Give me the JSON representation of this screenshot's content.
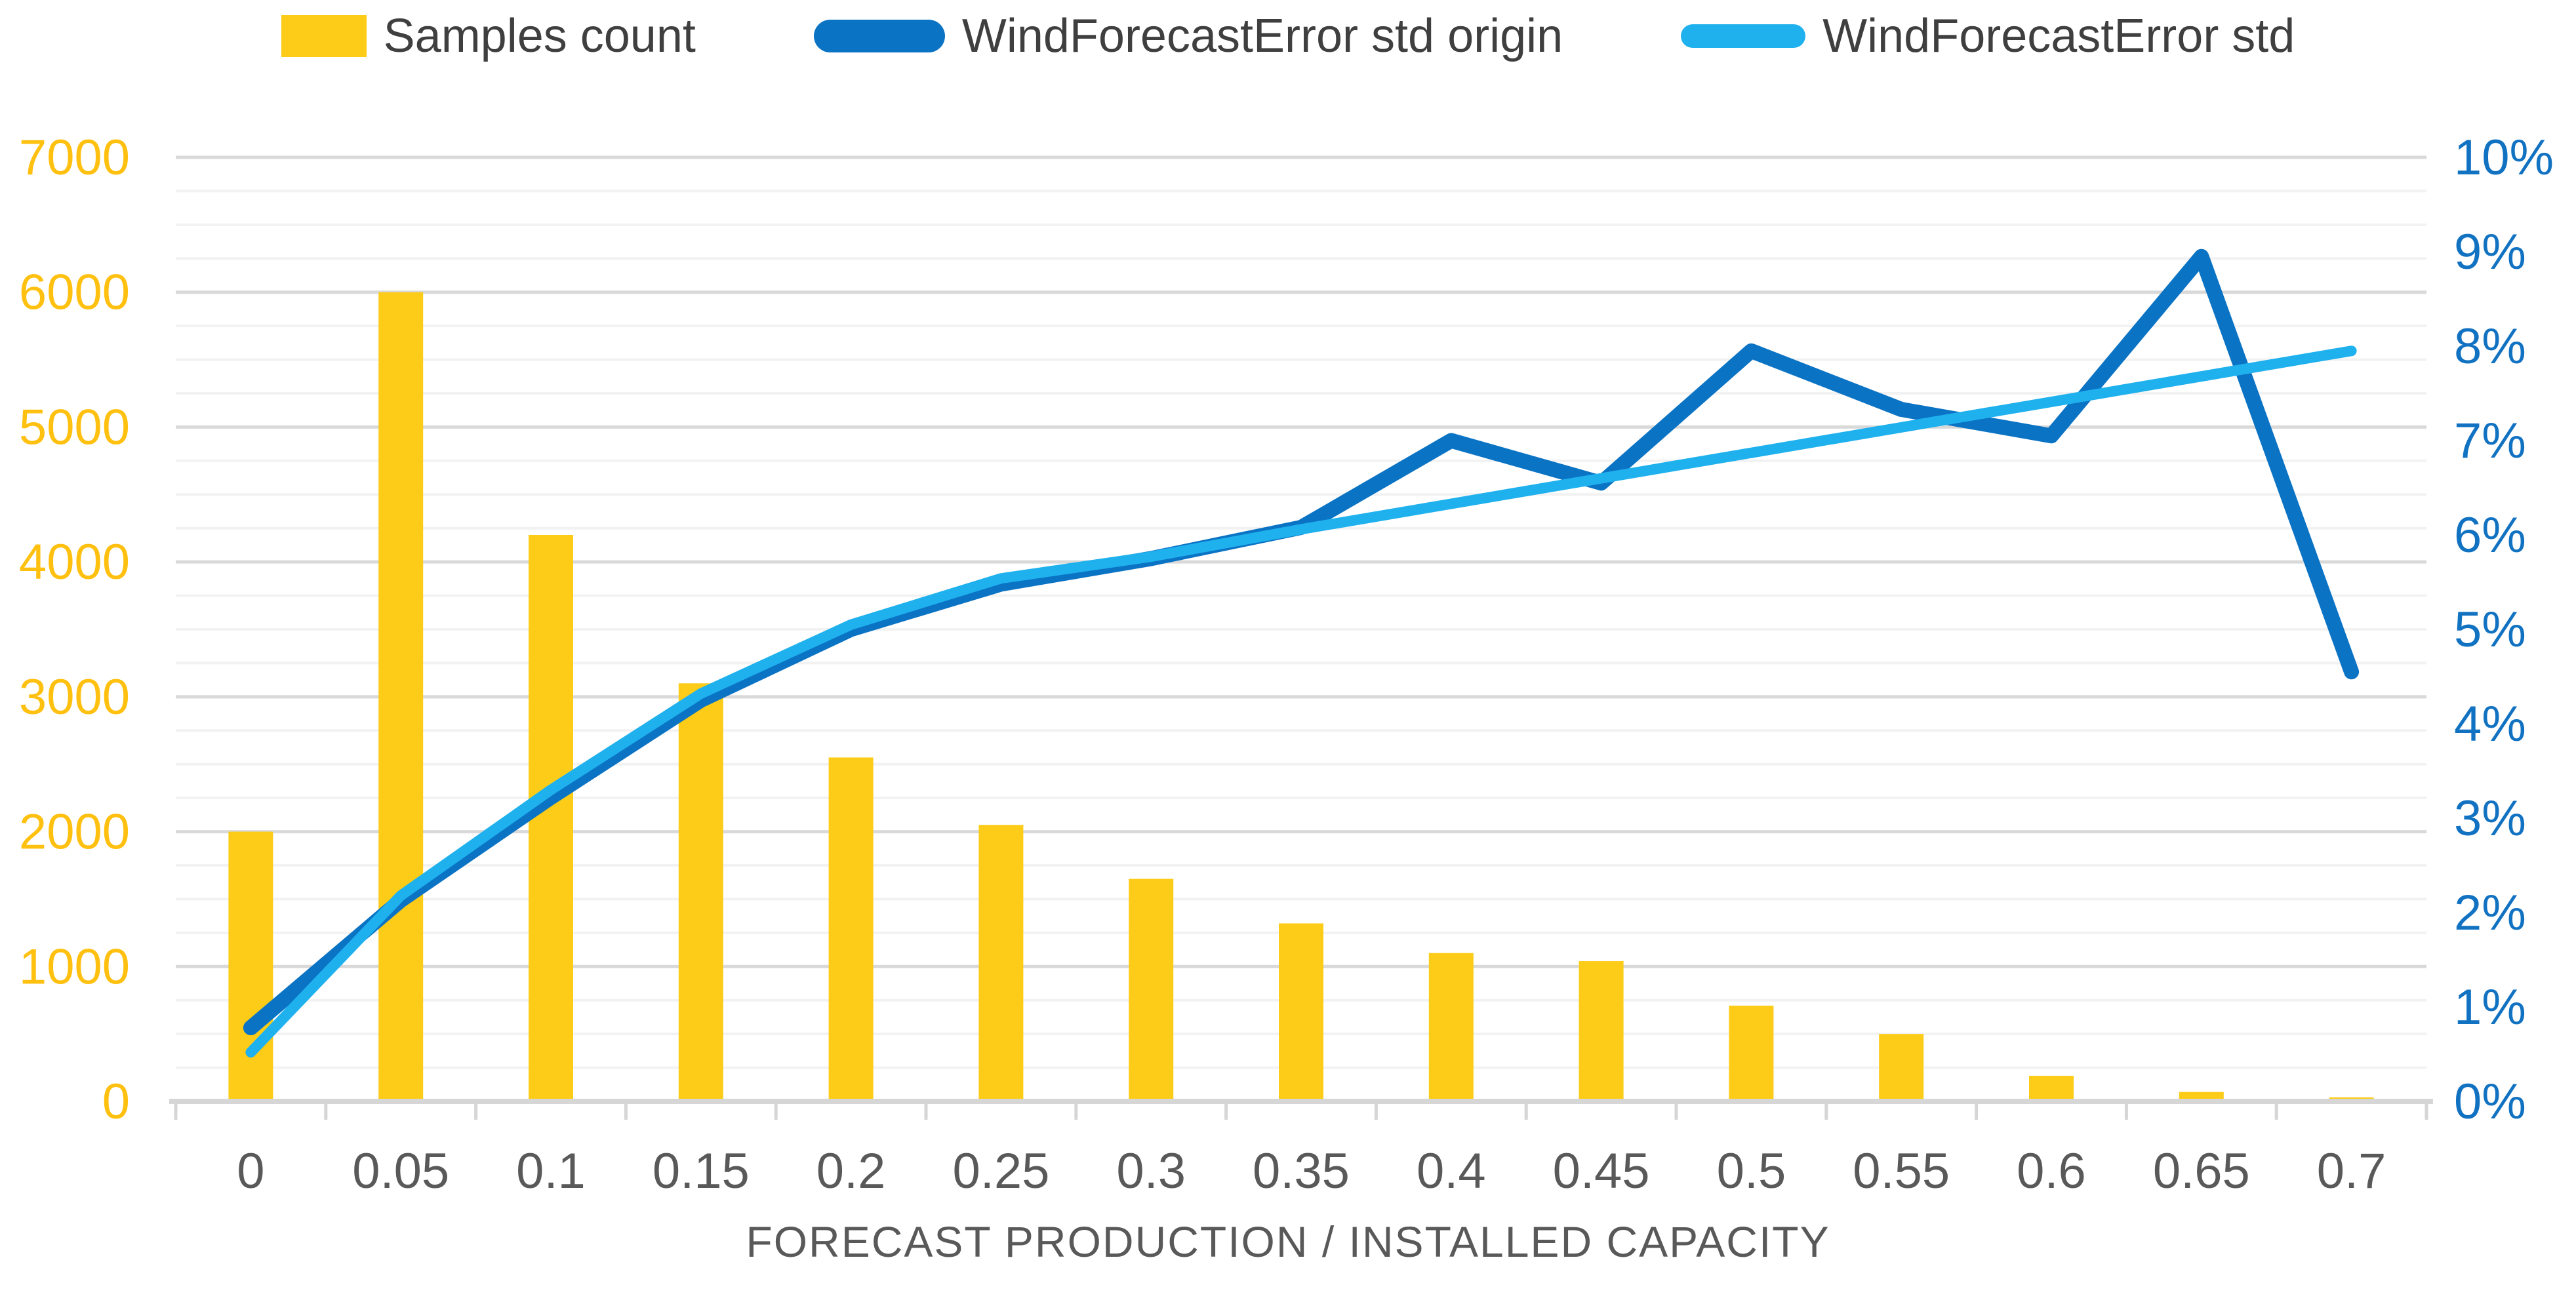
{
  "legend": [
    {
      "label": "Samples count",
      "type": "bar",
      "color": "#FCCC18"
    },
    {
      "label": "WindForecastError std origin",
      "type": "line",
      "color": "#0B73C4"
    },
    {
      "label": "WindForecastError std",
      "type": "line",
      "color": "#1FB1EE"
    }
  ],
  "chart_data": {
    "type": "combo-bar-line",
    "title": "",
    "xlabel": "FORECAST PRODUCTION / INSTALLED CAPACITY",
    "categories": [
      "0",
      "0.05",
      "0.1",
      "0.15",
      "0.2",
      "0.25",
      "0.3",
      "0.35",
      "0.4",
      "0.45",
      "0.5",
      "0.55",
      "0.6",
      "0.65",
      "0.7"
    ],
    "series": [
      {
        "name": "Samples count",
        "type": "bar",
        "axis": "left",
        "color": "#FCCC18",
        "values": [
          2000,
          6000,
          4200,
          3100,
          2550,
          2050,
          1650,
          1320,
          1100,
          1040,
          710,
          500,
          190,
          70,
          30
        ]
      },
      {
        "name": "WindForecastError std origin",
        "type": "line",
        "axis": "right",
        "color": "#0B73C4",
        "stroke_width": 23,
        "values_percent": [
          0.78,
          2.13,
          3.22,
          4.25,
          5.0,
          5.48,
          5.75,
          6.08,
          7.0,
          6.55,
          7.95,
          7.33,
          7.05,
          8.95,
          4.55
        ]
      },
      {
        "name": "WindForecastError std",
        "type": "line",
        "axis": "right",
        "color": "#1FB1EE",
        "stroke_width": 16,
        "values_percent": [
          0.52,
          2.18,
          3.3,
          4.32,
          5.05,
          5.54,
          5.77,
          6.06,
          6.33,
          6.6,
          6.87,
          7.14,
          7.41,
          7.68,
          7.95
        ]
      }
    ],
    "left_axis": {
      "min": 0,
      "max": 7000,
      "tick_step": 1000,
      "minor_step": 250,
      "color": "#FFC010",
      "ticks": [
        "0",
        "1000",
        "2000",
        "3000",
        "4000",
        "5000",
        "6000",
        "7000"
      ]
    },
    "right_axis": {
      "min": 0,
      "max": 10,
      "tick_step": 1,
      "unit": "%",
      "color": "#1272C2",
      "ticks": [
        "0%",
        "1%",
        "2%",
        "3%",
        "4%",
        "5%",
        "6%",
        "7%",
        "8%",
        "9%",
        "10%"
      ]
    },
    "x_axis": {
      "label_color": "#595959"
    },
    "grid": {
      "major_color": "#D9D9D9",
      "minor_color": "#F2F2F2",
      "axis_line_color": "#D6D6D6",
      "legend_text_color": "#3F3F3F"
    }
  }
}
